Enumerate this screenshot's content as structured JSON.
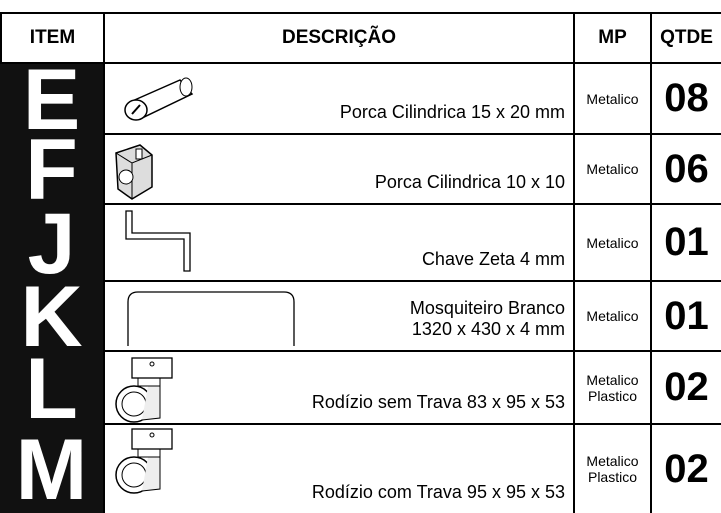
{
  "header": {
    "item": "ITEM",
    "description": "DESCRIÇÃO",
    "mp": "MP",
    "qty": "QTDE"
  },
  "rows": [
    {
      "item": "E",
      "description": [
        "Porca Cilindrica 15 x 20 mm"
      ],
      "mp": [
        "Metalico"
      ],
      "qty": "08"
    },
    {
      "item": "F",
      "description": [
        "Porca Cilindrica 10 x 10"
      ],
      "mp": [
        "Metalico"
      ],
      "qty": "06"
    },
    {
      "item": "J",
      "description": [
        "Chave Zeta 4 mm"
      ],
      "mp": [
        "Metalico"
      ],
      "qty": "01"
    },
    {
      "item": "K",
      "description": [
        "Mosquiteiro Branco",
        "1320 x 430 x 4 mm"
      ],
      "mp": [
        "Metalico"
      ],
      "qty": "01"
    },
    {
      "item": "L",
      "description": [
        "Rodízio sem Trava 83 x 95 x 53"
      ],
      "mp": [
        "Metalico",
        "Plastico"
      ],
      "qty": "02"
    },
    {
      "item": "M",
      "description": [
        "Rodízio com Trava 95 x 95 x 53"
      ],
      "mp": [
        "Metalico",
        "Plastico"
      ],
      "qty": "02"
    }
  ]
}
